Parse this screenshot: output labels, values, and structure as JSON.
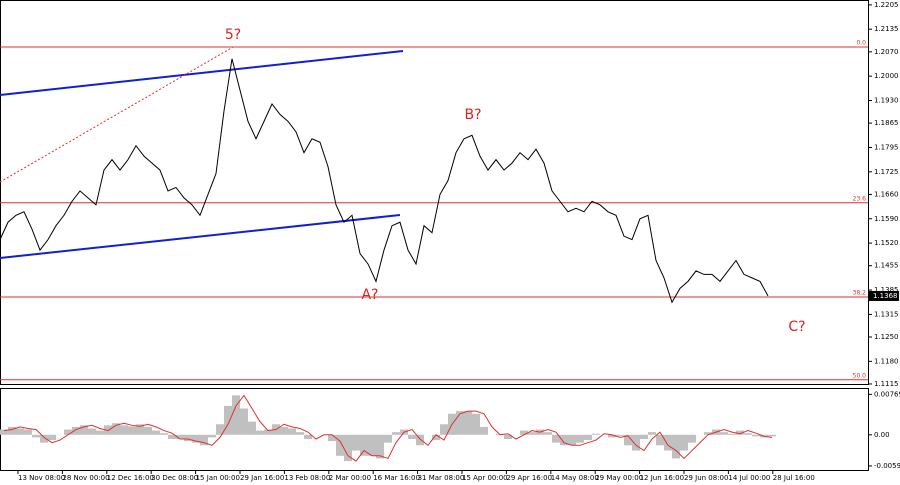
{
  "chart_data": [
    {
      "type": "line",
      "color": "#000000",
      "values": [
        1.153,
        1.158,
        1.16,
        1.161,
        1.156,
        1.15,
        1.153,
        1.157,
        1.16,
        1.164,
        1.167,
        1.165,
        1.163,
        1.173,
        1.176,
        1.173,
        1.176,
        1.18,
        1.177,
        1.175,
        1.173,
        1.167,
        1.168,
        1.165,
        1.163,
        1.16,
        1.166,
        1.172,
        1.19,
        1.205,
        1.196,
        1.187,
        1.182,
        1.187,
        1.192,
        1.189,
        1.187,
        1.184,
        1.178,
        1.182,
        1.181,
        1.174,
        1.163,
        1.158,
        1.16,
        1.149,
        1.146,
        1.141,
        1.15,
        1.157,
        1.158,
        1.15,
        1.146,
        1.157,
        1.155,
        1.166,
        1.17,
        1.178,
        1.182,
        1.183,
        1.177,
        1.173,
        1.176,
        1.173,
        1.175,
        1.178,
        1.176,
        1.179,
        1.175,
        1.167,
        1.164,
        1.161,
        1.162,
        1.161,
        1.164,
        1.163,
        1.161,
        1.16,
        1.154,
        1.153,
        1.159,
        1.16,
        1.147,
        1.142,
        1.135,
        1.139,
        1.141,
        1.144,
        1.143,
        1.143,
        1.141,
        1.144,
        1.147,
        1.143,
        1.142,
        1.141,
        1.1368
      ],
      "last_price": 1.1368,
      "ylim": [
        1.1112,
        1.2219
      ],
      "yticks": [
        1.2205,
        1.2135,
        {
          "value": 1.207,
          "label": "1.2070"
        },
        {
          "value": 1.2,
          "label": "1.2000"
        },
        {
          "value": 1.193,
          "label": "1.1930"
        },
        1.1865,
        1.1795,
        1.1725,
        {
          "value": 1.166,
          "label": "1.1660"
        },
        {
          "value": 1.159,
          "label": "1.1590"
        },
        {
          "value": 1.152,
          "label": "1.1520"
        },
        1.1455,
        1.1385,
        1.1315,
        {
          "value": 1.125,
          "label": "1.1250"
        },
        {
          "value": 1.118,
          "label": "1.1180"
        },
        1.1115
      ],
      "levels": [
        {
          "value": 1.2084,
          "label": "0.0"
        },
        {
          "value": 1.1636,
          "label": "23.6"
        },
        {
          "value": 1.1365,
          "label": "38.2"
        },
        {
          "value": 1.1127,
          "label": "50.0"
        }
      ],
      "level_color": "#e03030",
      "annotations": [
        "5?",
        "B?",
        "A?",
        "C?"
      ],
      "annotation_color": "#e02020",
      "x_labels": [
        "13 Nov 08:00",
        "28 Nov 00:00",
        "12 Dec 16:00",
        "30 Dec 08:00",
        "15 Jan 00:00",
        "29 Jan 16:00",
        "13 Feb 08:00",
        "2 Mar 00:00",
        "16 Mar 16:00",
        "31 Mar 08:00",
        "15 Apr 00:00",
        "29 Apr 16:00",
        "14 May 08:00",
        "29 May 00:00",
        "12 Jun 16:00",
        "29 Jun 08:00",
        "14 Jul 00:00",
        "28 Jul 16:00"
      ]
    },
    {
      "type": "bar",
      "color": "#c0c0c0",
      "values": [
        0.001,
        0.0015,
        0.0012,
        0.001,
        -0.0005,
        -0.0015,
        -0.001,
        0,
        0.001,
        0.0015,
        0.0018,
        0.0012,
        0.0008,
        0.0018,
        0.0022,
        0.0018,
        0.0016,
        0.002,
        0.0015,
        0.0008,
        0.0003,
        -0.0008,
        -0.0008,
        -0.0012,
        -0.0015,
        -0.002,
        -0.0005,
        0.002,
        0.0055,
        0.0075,
        0.005,
        0.0025,
        0.0008,
        0.001,
        0.002,
        0.0015,
        0.0012,
        0.0005,
        -0.0008,
        0,
        0,
        -0.0012,
        -0.004,
        -0.005,
        -0.003,
        -0.004,
        -0.004,
        -0.0045,
        -0.0015,
        0.0005,
        0.001,
        -0.0008,
        -0.002,
        0,
        -0.001,
        0.002,
        0.004,
        0.0045,
        0.0045,
        0.004,
        0.0015,
        0,
        0.0002,
        -0.0008,
        0,
        0.0008,
        0.0005,
        0.001,
        0.0005,
        -0.0015,
        -0.002,
        -0.002,
        -0.0015,
        -0.001,
        0.0002,
        0,
        -0.0005,
        -0.0002,
        -0.002,
        -0.003,
        -0.0008,
        0.0005,
        -0.002,
        -0.003,
        -0.0045,
        -0.003,
        -0.0015,
        0,
        0.0005,
        0.001,
        0.0005,
        0.0002,
        0.0008,
        0.0003,
        -0.0003,
        -0.0005,
        -0.0003
      ],
      "signal": [
        0.0008,
        0.001,
        0.0015,
        0.0012,
        0.001,
        -0.0005,
        -0.0015,
        -0.001,
        0,
        0.001,
        0.0015,
        0.0018,
        0.0012,
        0.0008,
        0.0018,
        0.0022,
        0.0018,
        0.0016,
        0.002,
        0.0015,
        0.0008,
        0.0003,
        -0.0008,
        -0.0008,
        -0.0012,
        -0.0015,
        -0.002,
        -0.0005,
        0.002,
        0.0055,
        0.0075,
        0.005,
        0.0025,
        0.0008,
        0.001,
        0.002,
        0.0015,
        0.0012,
        0.0005,
        -0.0008,
        0,
        0,
        -0.0012,
        -0.004,
        -0.005,
        -0.003,
        -0.004,
        -0.004,
        -0.0045,
        -0.0015,
        0.0005,
        0.001,
        -0.0008,
        -0.002,
        0,
        -0.001,
        0.002,
        0.004,
        0.0045,
        0.0045,
        0.004,
        0.0015,
        0,
        0.0002,
        -0.0008,
        0,
        0.0008,
        0.0005,
        0.001,
        0.0005,
        -0.0015,
        -0.002,
        -0.002,
        -0.0015,
        -0.001,
        0.0002,
        0,
        -0.0005,
        -0.0002,
        -0.002,
        -0.003,
        -0.0008,
        0.0005,
        -0.002,
        -0.003,
        -0.0045,
        -0.003,
        -0.0015,
        0,
        0.0005,
        0.001,
        0.0005,
        0.0002,
        0.0008,
        0.0003,
        -0.0003,
        -0.0005
      ],
      "signal_color": "#e03030",
      "ylim": [
        -0.0067,
        0.0089
      ],
      "yticks": [
        0.00769,
        {
          "value": 0,
          "label": "0.00"
        },
        -0.00593
      ]
    }
  ]
}
